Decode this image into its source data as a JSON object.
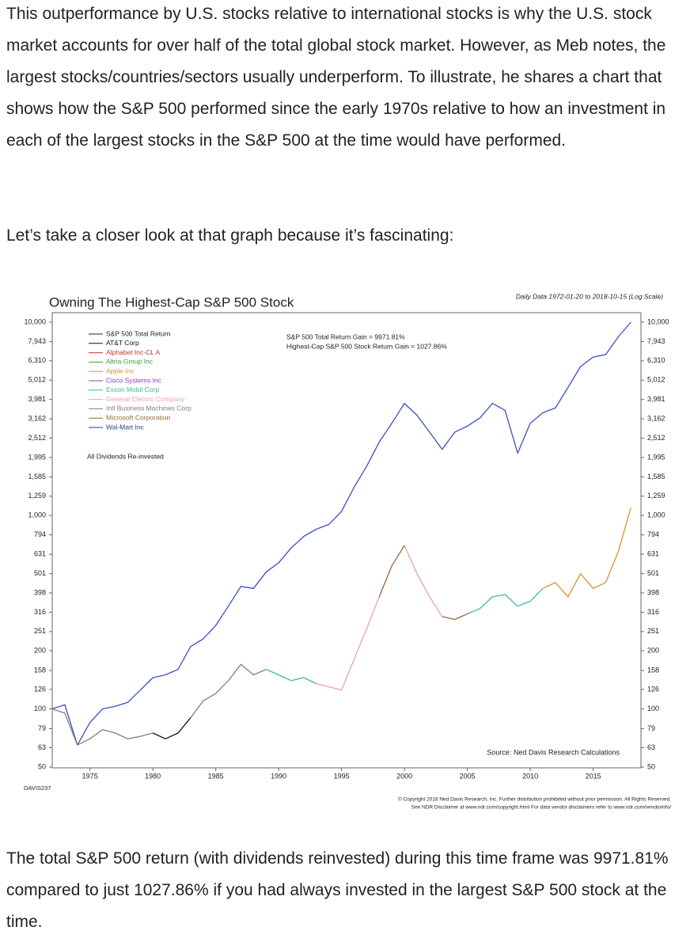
{
  "paragraphs": [
    "This outperformance by U.S. stocks relative to international stocks is why the U.S. stock market accounts for over half of the total global stock market. However, as Meb notes, the largest stocks/countries/sectors usually underperform. To illustrate, he shares a chart that shows how the S&P 500 performed since the early 1970s relative to how an investment in each of the largest stocks in the S&P 500 at the time would have performed.",
    "Let’s take a closer look at that graph because it’s fascinating:",
    "The total S&P 500 return (with dividends reinvested) during this time frame was 9971.81% compared to just 1027.86% if you had always invested in the largest S&P 500 stock at the time."
  ],
  "chart_data": {
    "type": "line",
    "title": "Owning The Highest-Cap S&P 500 Stock",
    "subtitle": "Daily Data 1972-01-20 to 2018-10-15 (Log Scale)",
    "annotations": [
      "S&P 500 Total Return Gain = 9971.81%",
      "Highest-Cap S&P 500 Stock Return Gain = 1027.86%"
    ],
    "note": "All Dividends Re-invested",
    "source": "Source: Ned Davis Research Calculations",
    "chart_id": "DAVIS237",
    "copyright": [
      "© Copyright 2018 Ned Davis Research, Inc. Further distribution prohibited without prior permission. All Rights Reserved.",
      "See NDR Disclaimer at www.ndr.com/copyright.html  For data vendor disclaimers refer to www.ndr.com/vendorinfo/"
    ],
    "log_scale": true,
    "xlim": [
      1972,
      2018.8
    ],
    "xticks": [
      1975,
      1980,
      1985,
      1990,
      1995,
      2000,
      2005,
      2010,
      2015
    ],
    "ylim": [
      50,
      10000
    ],
    "yticks": [
      {
        "value": 10000,
        "label": "10,000"
      },
      {
        "value": 7943,
        "label": "7,943"
      },
      {
        "value": 6310,
        "label": "6,310"
      },
      {
        "value": 5012,
        "label": "5,012"
      },
      {
        "value": 3981,
        "label": "3,981"
      },
      {
        "value": 3162,
        "label": "3,162"
      },
      {
        "value": 2512,
        "label": "2,512"
      },
      {
        "value": 1995,
        "label": "1,995"
      },
      {
        "value": 1585,
        "label": "1,585"
      },
      {
        "value": 1259,
        "label": "1,259"
      },
      {
        "value": 1000,
        "label": "1,000"
      },
      794,
      631,
      501,
      398,
      316,
      251,
      200,
      158,
      126,
      100,
      79,
      63,
      50
    ],
    "series": [
      {
        "name": "S&P 500 Total Return",
        "color": "#3a4fc4",
        "x": [
          1972,
          1973,
          1974,
          1975,
          1976,
          1977,
          1978,
          1979,
          1980,
          1981,
          1982,
          1983,
          1984,
          1985,
          1986,
          1987,
          1988,
          1989,
          1990,
          1991,
          1992,
          1993,
          1994,
          1995,
          1996,
          1997,
          1998,
          1999,
          2000,
          2001,
          2002,
          2003,
          2004,
          2005,
          2006,
          2007,
          2008,
          2009,
          2010,
          2011,
          2012,
          2013,
          2014,
          2015,
          2016,
          2017,
          2018
        ],
        "values": [
          100,
          105,
          65,
          85,
          100,
          103,
          108,
          125,
          145,
          150,
          160,
          210,
          230,
          270,
          340,
          430,
          420,
          510,
          570,
          680,
          780,
          850,
          900,
          1050,
          1400,
          1800,
          2400,
          3000,
          3800,
          3300,
          2700,
          2200,
          2700,
          2900,
          3200,
          3800,
          3500,
          2100,
          3000,
          3400,
          3600,
          4600,
          5900,
          6600,
          6800,
          8400,
          10000
        ]
      },
      {
        "name": "AT&T Corp",
        "color": "#111111",
        "x": [
          1980,
          1981,
          1982,
          1983
        ],
        "values": [
          75,
          70,
          75,
          90
        ]
      },
      {
        "name": "Alphabet Inc-CL A",
        "color": "#c8352b",
        "x": [],
        "values": []
      },
      {
        "name": "Altria Group Inc",
        "color": "#3a9a3a",
        "x": [],
        "values": []
      },
      {
        "name": "Apple Inc",
        "color": "#e0902e",
        "x": [
          2011,
          2012,
          2013,
          2014,
          2015,
          2016,
          2017,
          2018
        ],
        "values": [
          420,
          450,
          380,
          500,
          420,
          450,
          650,
          1100
        ]
      },
      {
        "name": "Cisco Systems Inc",
        "color": "#9040b8",
        "x": [],
        "values": []
      },
      {
        "name": "Exxon Mobil Corp",
        "color": "#3ab8ac",
        "x": [
          1989,
          1990,
          1991,
          1992,
          1993,
          1994,
          2005,
          2006,
          2007,
          2008,
          2009,
          2010,
          2011
        ],
        "values": [
          160,
          150,
          140,
          145,
          135,
          null,
          310,
          330,
          380,
          390,
          340,
          360,
          420
        ]
      },
      {
        "name": "General Electric Company",
        "color": "#eaa2ac",
        "x": [
          1993,
          1994,
          1995,
          1996,
          1997,
          1998,
          1999,
          2000,
          2001,
          2002,
          2003
        ],
        "values": [
          135,
          130,
          125,
          180,
          260,
          380,
          null,
          700,
          500,
          380,
          300
        ]
      },
      {
        "name": "Intl Business Machines Corp",
        "color": "#808080",
        "x": [
          1972,
          1973,
          1974,
          1975,
          1976,
          1977,
          1978,
          1979,
          1980,
          1981,
          1983,
          1984,
          1985,
          1986,
          1987,
          1988,
          1989
        ],
        "values": [
          100,
          95,
          65,
          70,
          78,
          75,
          70,
          72,
          75,
          null,
          90,
          110,
          120,
          140,
          170,
          150,
          160
        ]
      },
      {
        "name": "Microsoft Corporation",
        "color": "#9a6a3a",
        "x": [
          1998,
          1999,
          2000,
          2001,
          2003,
          2004,
          2005
        ],
        "values": [
          380,
          550,
          700,
          null,
          300,
          290,
          310
        ]
      },
      {
        "name": "Wal-Mart Inc",
        "color": "#2a3a8a",
        "x": [],
        "values": []
      }
    ]
  }
}
